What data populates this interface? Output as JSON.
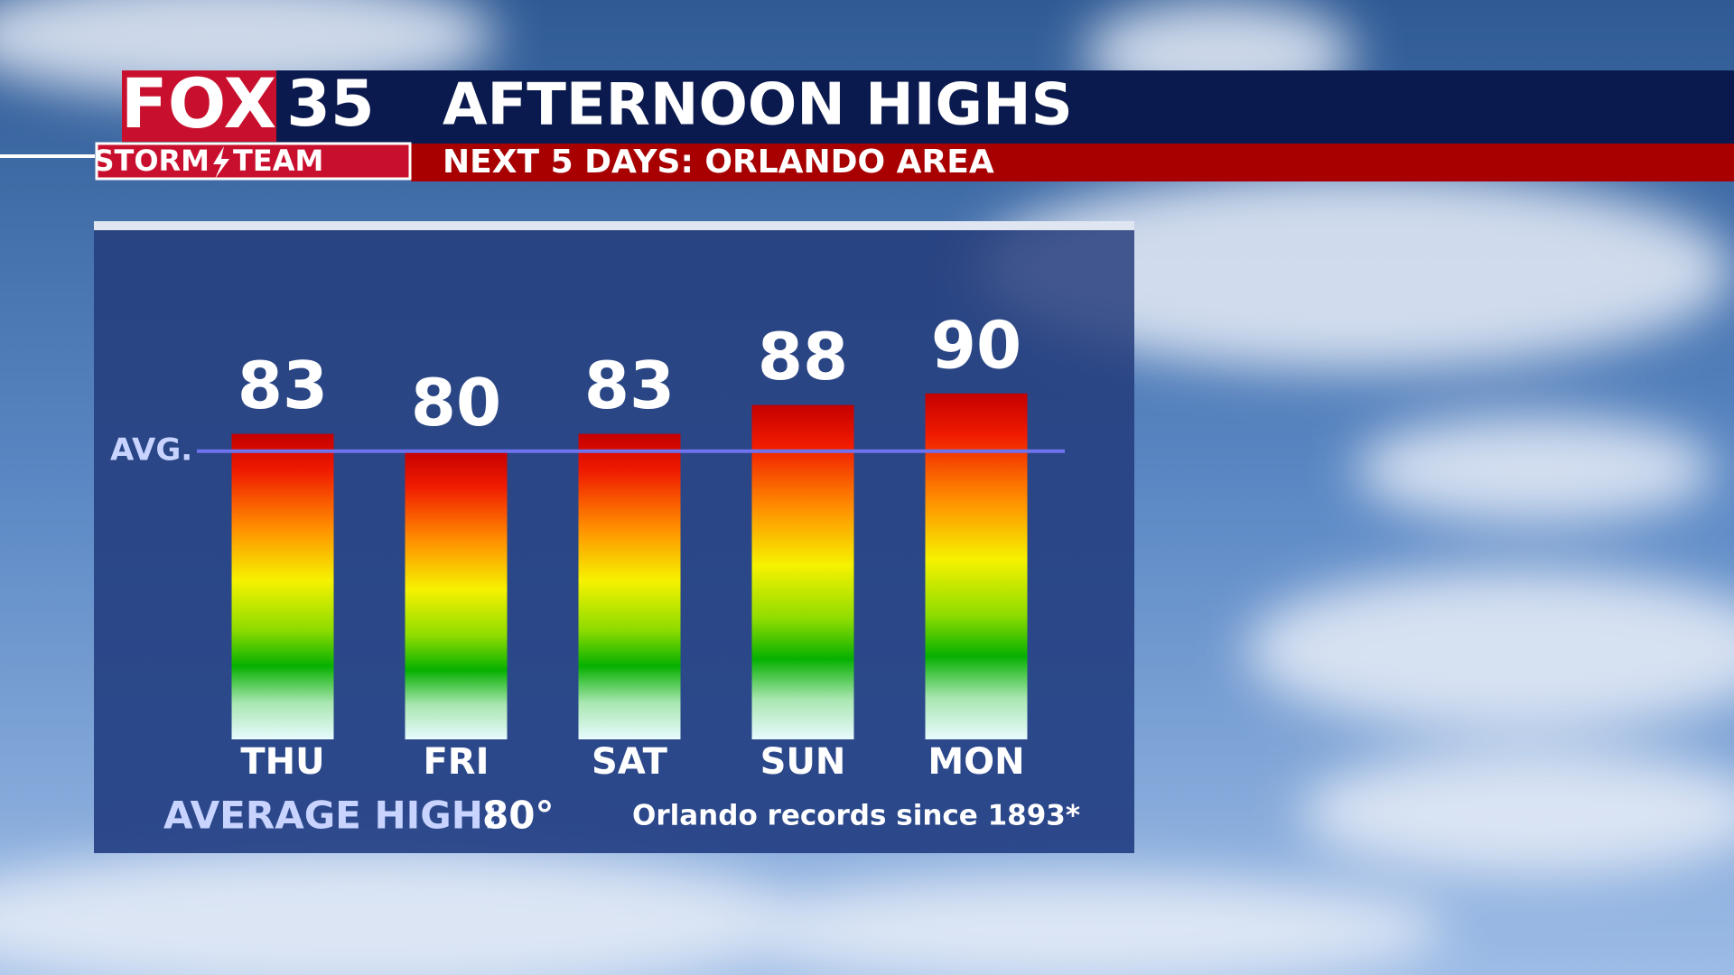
{
  "brand": {
    "name": "FOX",
    "channel": "35",
    "team_first": "STORM",
    "team_second": "TEAM"
  },
  "chart_data": {
    "type": "bar",
    "title": "AFTERNOON HIGHS",
    "subtitle": "NEXT 5 DAYS: ORLANDO AREA",
    "categories": [
      "THU",
      "FRI",
      "SAT",
      "SUN",
      "MON"
    ],
    "values": [
      83,
      80,
      83,
      88,
      90
    ],
    "ylim": [
      30,
      100
    ],
    "average": {
      "label": "AVG.",
      "caption": "AVERAGE HIGH:",
      "value": 80,
      "value_label": "80°"
    },
    "note": "Orlando records since 1893*"
  }
}
